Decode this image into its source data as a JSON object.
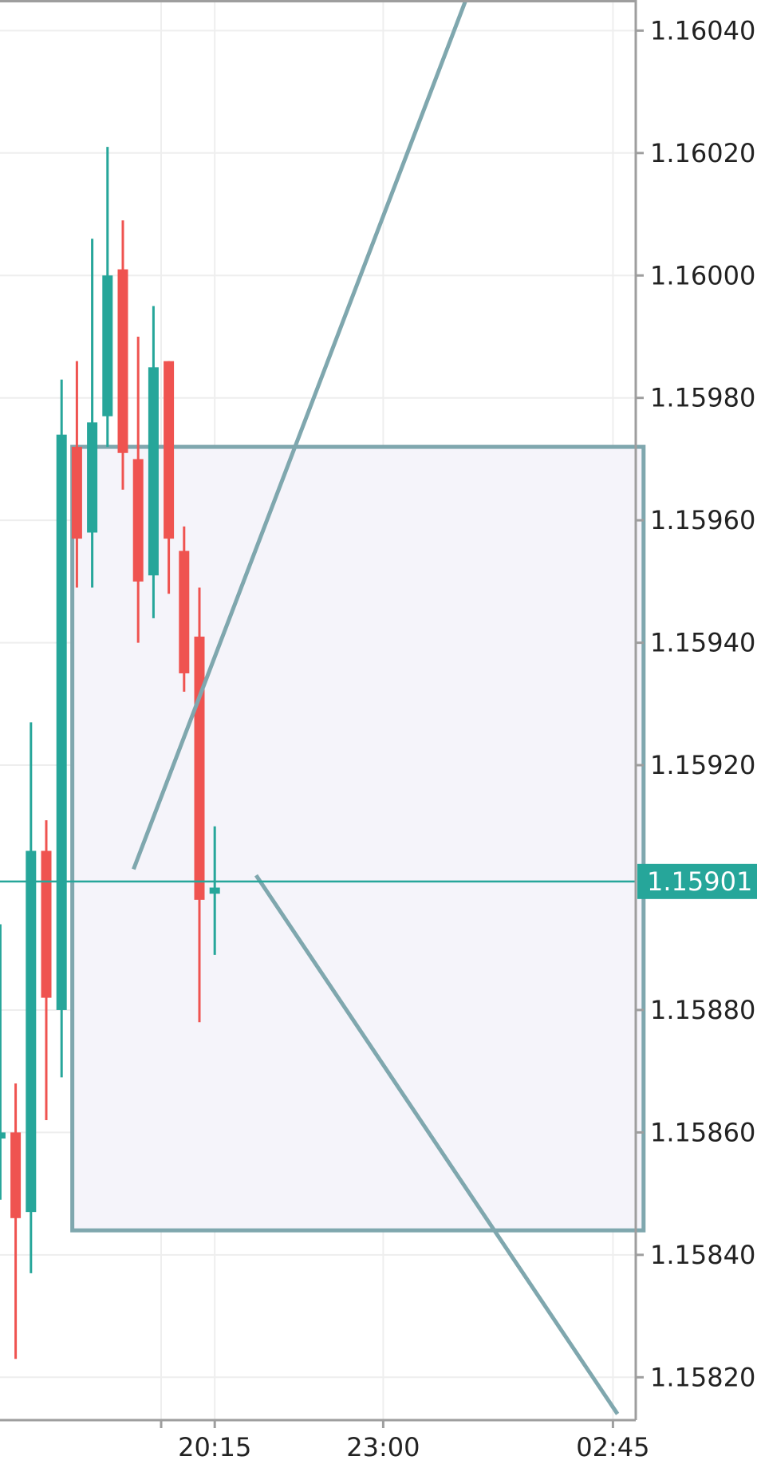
{
  "chart_data": {
    "type": "candlestick",
    "y_axis": {
      "range": [
        1.15813,
        1.16045
      ],
      "ticks": [
        "1.16040",
        "1.16020",
        "1.16000",
        "1.15980",
        "1.15960",
        "1.15940",
        "1.15920",
        "1.15880",
        "1.15860",
        "1.15840",
        "1.15820"
      ]
    },
    "x_axis": {
      "ticks": [
        {
          "label": "20:15",
          "bar": 13.5
        },
        {
          "label": "23:00",
          "bar": 24.5
        },
        {
          "label": "02:45",
          "bar": 39.5
        }
      ],
      "grid_bars": [
        10.0,
        13.5,
        24.5,
        39.5
      ]
    },
    "candles": [
      {
        "bar": -0.5,
        "open": 1.15859,
        "high": 1.15894,
        "low": 1.15849,
        "close": 1.1586
      },
      {
        "bar": 0.5,
        "open": 1.1586,
        "high": 1.15868,
        "low": 1.15823,
        "close": 1.15846
      },
      {
        "bar": 1.5,
        "open": 1.15847,
        "high": 1.15927,
        "low": 1.15837,
        "close": 1.15906
      },
      {
        "bar": 2.5,
        "open": 1.15906,
        "high": 1.15911,
        "low": 1.15862,
        "close": 1.15882
      },
      {
        "bar": 3.5,
        "open": 1.1588,
        "high": 1.15983,
        "low": 1.15869,
        "close": 1.15974
      },
      {
        "bar": 4.5,
        "open": 1.15972,
        "high": 1.15986,
        "low": 1.15949,
        "close": 1.15957
      },
      {
        "bar": 5.5,
        "open": 1.15958,
        "high": 1.16006,
        "low": 1.15949,
        "close": 1.15976
      },
      {
        "bar": 6.5,
        "open": 1.15977,
        "high": 1.16021,
        "low": 1.15972,
        "close": 1.16
      },
      {
        "bar": 7.5,
        "open": 1.16001,
        "high": 1.16009,
        "low": 1.15965,
        "close": 1.15971
      },
      {
        "bar": 8.5,
        "open": 1.1597,
        "high": 1.1599,
        "low": 1.1594,
        "close": 1.1595
      },
      {
        "bar": 9.5,
        "open": 1.15951,
        "high": 1.15995,
        "low": 1.15944,
        "close": 1.15985
      },
      {
        "bar": 10.5,
        "open": 1.15986,
        "high": 1.15986,
        "low": 1.15948,
        "close": 1.15957
      },
      {
        "bar": 11.5,
        "open": 1.15955,
        "high": 1.15959,
        "low": 1.15932,
        "close": 1.15935
      },
      {
        "bar": 12.5,
        "open": 1.15941,
        "high": 1.15949,
        "low": 1.15878,
        "close": 1.15898
      },
      {
        "bar": 13.5,
        "open": 1.15899,
        "high": 1.1591,
        "low": 1.15889,
        "close": 1.159
      }
    ],
    "current_price": {
      "value": 1.15901,
      "label": "1.15901"
    },
    "rectangle": {
      "bar_start": 4.2,
      "bar_end": 41.5,
      "price_top": 1.15972,
      "price_bottom": 1.15844
    },
    "trend_lines": [
      {
        "from": {
          "bar": 8.2,
          "price": 1.15903
        },
        "to": {
          "bar": 30.2,
          "price": 1.16047
        }
      },
      {
        "from": {
          "bar": 16.2,
          "price": 1.15902
        },
        "to": {
          "bar": 39.8,
          "price": 1.15814
        }
      }
    ],
    "colors": {
      "up": "#26a69a",
      "down": "#ef5350",
      "drawing": "#7fa7ae",
      "rectangle_fill": "#f5f4fa",
      "grid": "#eeeeee",
      "axis": "#9e9e9e",
      "price_tag": "#26a69a"
    },
    "grid": true
  }
}
